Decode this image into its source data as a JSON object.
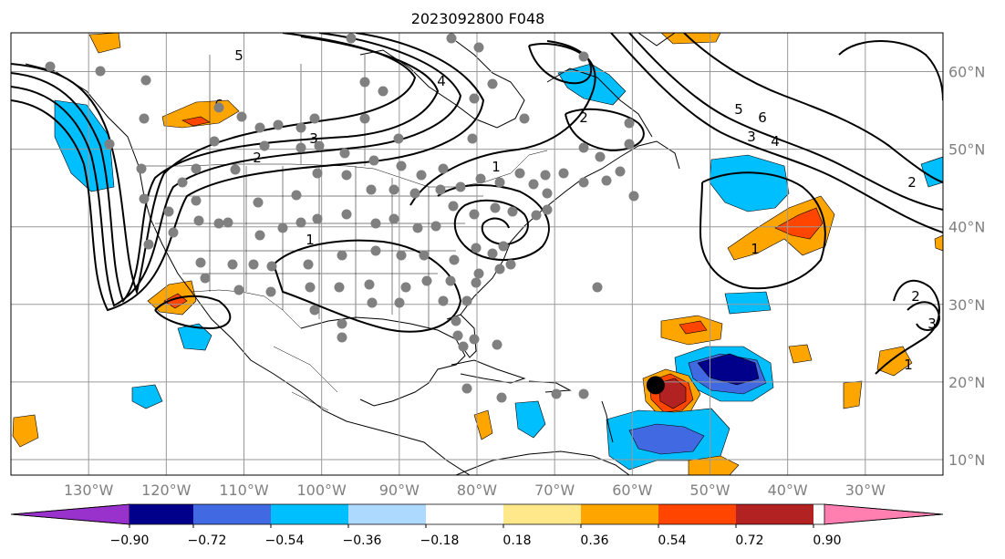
{
  "title": "2023092800 F048",
  "map": {
    "lon_range": [
      -140,
      -20
    ],
    "lat_range": [
      8,
      65
    ],
    "lon_ticks": [
      {
        "lon": -130,
        "label": "130°W"
      },
      {
        "lon": -120,
        "label": "120°W"
      },
      {
        "lon": -110,
        "label": "110°W"
      },
      {
        "lon": -100,
        "label": "100°W"
      },
      {
        "lon": -90,
        "label": "90°W"
      },
      {
        "lon": -80,
        "label": "80°W"
      },
      {
        "lon": -70,
        "label": "70°W"
      },
      {
        "lon": -60,
        "label": "60°W"
      },
      {
        "lon": -50,
        "label": "50°W"
      },
      {
        "lon": -40,
        "label": "40°W"
      },
      {
        "lon": -30,
        "label": "30°W"
      }
    ],
    "lat_ticks": [
      {
        "lat": 60,
        "label": "60°N"
      },
      {
        "lat": 50,
        "label": "50°N"
      },
      {
        "lat": 40,
        "label": "40°N"
      },
      {
        "lat": 30,
        "label": "30°N"
      },
      {
        "lat": 20,
        "label": "20°N"
      },
      {
        "lat": 10,
        "label": "10°N"
      }
    ],
    "gridlines": true,
    "contour_labels": [
      "6",
      "5",
      "4",
      "3",
      "2",
      "1",
      "6",
      "5",
      "4",
      "3",
      "2",
      "1",
      "1",
      "2",
      "3",
      "2",
      "1"
    ],
    "storm_marker": {
      "lon": -57,
      "lat": 19
    }
  },
  "colorbar": {
    "colors": [
      "#9932cc",
      "#00008b",
      "#4169e1",
      "#00bfff",
      "#add8ff",
      "#ffffff",
      "#ffe88a",
      "#ffa500",
      "#ff4500",
      "#b22222",
      "#ff80b0"
    ],
    "ticks": [
      "−0.90",
      "−0.72",
      "−0.54",
      "−0.36",
      "−0.18",
      "0.18",
      "0.36",
      "0.54",
      "0.72",
      "0.90"
    ]
  }
}
